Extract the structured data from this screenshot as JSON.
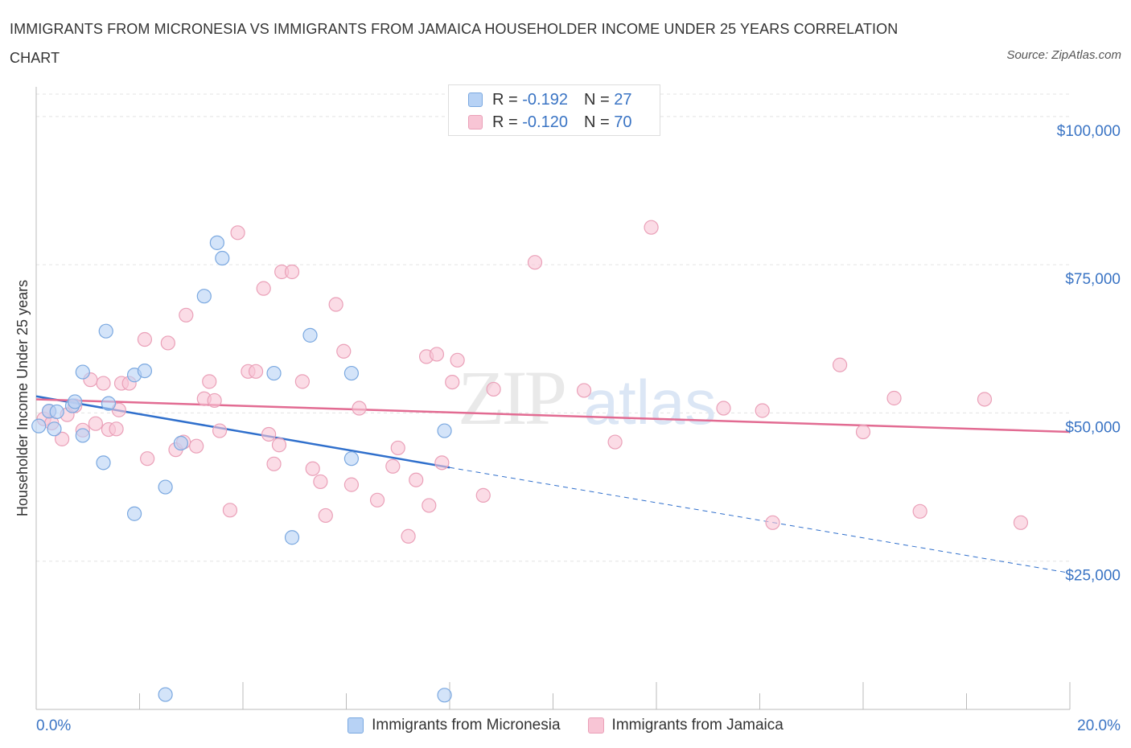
{
  "header": {
    "title": "IMMIGRANTS FROM MICRONESIA VS IMMIGRANTS FROM JAMAICA HOUSEHOLDER INCOME UNDER 25 YEARS CORRELATION CHART",
    "source": "Source: ZipAtlas.com"
  },
  "legend_box": {
    "rows": [
      {
        "r_label": "R =",
        "r_value": "-0.192",
        "n_label": "N =",
        "n_value": "27"
      },
      {
        "r_label": "R =",
        "r_value": "-0.120",
        "n_label": "N =",
        "n_value": "70"
      }
    ]
  },
  "colors": {
    "micronesia_fill": "#b7d2f5",
    "micronesia_stroke": "#7aa8e0",
    "micronesia_line": "#2f6fcc",
    "jamaica_fill": "#f8c5d5",
    "jamaica_stroke": "#eaa0b8",
    "jamaica_line": "#e26b92",
    "tick_label": "#3a74c4",
    "grid": "#e3e3e3"
  },
  "chart_data": {
    "type": "scatter",
    "title": "IMMIGRANTS FROM MICRONESIA VS IMMIGRANTS FROM JAMAICA HOUSEHOLDER INCOME UNDER 25 YEARS CORRELATION CHART",
    "xlabel": "",
    "ylabel": "Householder Income Under 25 years",
    "xlim": [
      0,
      20
    ],
    "ylim": [
      0,
      105000
    ],
    "x_tick_labels": [
      {
        "value": 0,
        "label": "0.0%"
      },
      {
        "value": 20,
        "label": "20.0%"
      }
    ],
    "y_ticks": [
      {
        "value": 25000,
        "label": "$25,000"
      },
      {
        "value": 50000,
        "label": "$50,000"
      },
      {
        "value": 75000,
        "label": "$75,000"
      },
      {
        "value": 100000,
        "label": "$100,000"
      }
    ],
    "watermark": {
      "zip": "ZIP",
      "atlas": "atlas"
    },
    "series": [
      {
        "name": "Immigrants from Micronesia",
        "r": -0.192,
        "n": 27,
        "trend": {
          "x0": 0,
          "y0": 52800,
          "x1": 8.0,
          "y1": 40800,
          "dashed_to_x": 20,
          "dashed_to_y": 23000
        },
        "points": [
          [
            0.05,
            47800
          ],
          [
            0.25,
            50300
          ],
          [
            0.35,
            47300
          ],
          [
            0.7,
            51200
          ],
          [
            0.9,
            46200
          ],
          [
            0.75,
            51900
          ],
          [
            0.9,
            56900
          ],
          [
            1.3,
            41600
          ],
          [
            1.4,
            51600
          ],
          [
            1.35,
            63800
          ],
          [
            1.9,
            56400
          ],
          [
            2.1,
            57100
          ],
          [
            1.9,
            33000
          ],
          [
            2.5,
            37500
          ],
          [
            2.8,
            44900
          ],
          [
            3.25,
            69700
          ],
          [
            3.5,
            78700
          ],
          [
            3.6,
            76100
          ],
          [
            4.6,
            56700
          ],
          [
            5.3,
            63100
          ],
          [
            6.1,
            56700
          ],
          [
            6.1,
            42300
          ],
          [
            7.9,
            47000
          ],
          [
            4.95,
            29000
          ],
          [
            2.5,
            2500
          ],
          [
            7.9,
            2400
          ],
          [
            0.4,
            50200
          ]
        ]
      },
      {
        "name": "Immigrants from Jamaica",
        "r": -0.12,
        "n": 70,
        "trend": {
          "x0": 0,
          "y0": 52300,
          "x1": 20,
          "y1": 46800
        },
        "points": [
          [
            0.15,
            49000
          ],
          [
            0.25,
            50300
          ],
          [
            0.3,
            48300
          ],
          [
            0.5,
            45600
          ],
          [
            0.6,
            49700
          ],
          [
            0.75,
            51200
          ],
          [
            0.9,
            47100
          ],
          [
            1.05,
            55600
          ],
          [
            1.15,
            48200
          ],
          [
            1.3,
            55000
          ],
          [
            1.4,
            47200
          ],
          [
            1.55,
            47300
          ],
          [
            1.6,
            50500
          ],
          [
            1.65,
            55000
          ],
          [
            1.8,
            55000
          ],
          [
            2.1,
            62400
          ],
          [
            2.15,
            42300
          ],
          [
            2.55,
            61800
          ],
          [
            2.7,
            43800
          ],
          [
            2.85,
            45100
          ],
          [
            2.9,
            66500
          ],
          [
            3.1,
            44400
          ],
          [
            3.25,
            52400
          ],
          [
            3.35,
            55300
          ],
          [
            3.45,
            52100
          ],
          [
            3.55,
            47000
          ],
          [
            3.75,
            33600
          ],
          [
            3.9,
            80400
          ],
          [
            4.1,
            57000
          ],
          [
            4.25,
            57000
          ],
          [
            4.4,
            71000
          ],
          [
            4.5,
            46400
          ],
          [
            4.6,
            41400
          ],
          [
            4.7,
            44600
          ],
          [
            4.75,
            73800
          ],
          [
            4.95,
            73800
          ],
          [
            5.15,
            55300
          ],
          [
            5.35,
            40600
          ],
          [
            5.5,
            38400
          ],
          [
            5.6,
            32700
          ],
          [
            5.8,
            68300
          ],
          [
            5.95,
            60400
          ],
          [
            6.1,
            37900
          ],
          [
            6.25,
            50800
          ],
          [
            6.6,
            35300
          ],
          [
            6.9,
            41000
          ],
          [
            7.0,
            44100
          ],
          [
            7.2,
            29200
          ],
          [
            7.35,
            38700
          ],
          [
            7.55,
            59500
          ],
          [
            7.6,
            34400
          ],
          [
            7.75,
            59900
          ],
          [
            7.85,
            41600
          ],
          [
            8.05,
            55200
          ],
          [
            8.15,
            58900
          ],
          [
            8.65,
            36100
          ],
          [
            8.85,
            54000
          ],
          [
            9.65,
            75400
          ],
          [
            10.6,
            53800
          ],
          [
            11.2,
            45100
          ],
          [
            11.9,
            81300
          ],
          [
            13.3,
            50800
          ],
          [
            14.05,
            50400
          ],
          [
            14.25,
            31500
          ],
          [
            15.55,
            58100
          ],
          [
            16.0,
            46800
          ],
          [
            16.6,
            52500
          ],
          [
            17.1,
            33400
          ],
          [
            18.35,
            52300
          ],
          [
            19.05,
            31500
          ]
        ]
      }
    ],
    "bottom_legend": [
      "Immigrants from Micronesia",
      "Immigrants from Jamaica"
    ]
  }
}
